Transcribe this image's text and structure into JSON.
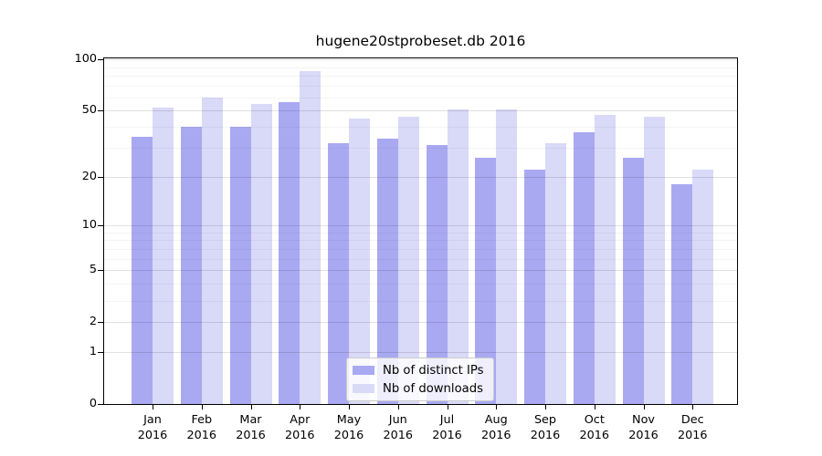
{
  "title": "hugene20stprobeset.db 2016",
  "chart_data": {
    "type": "bar",
    "title": "hugene20stprobeset.db 2016",
    "categories": [
      "Jan 2016",
      "Feb 2016",
      "Mar 2016",
      "Apr 2016",
      "May 2016",
      "Jun 2016",
      "Jul 2016",
      "Aug 2016",
      "Sep 2016",
      "Oct 2016",
      "Nov 2016",
      "Dec 2016"
    ],
    "series": [
      {
        "name": "Nb of distinct IPs",
        "color": "#a9a9f2",
        "values": [
          35,
          40,
          40,
          56,
          32,
          34,
          31,
          26,
          22,
          37,
          26,
          18
        ]
      },
      {
        "name": "Nb of downloads",
        "color": "#d9d9f8",
        "values": [
          52,
          60,
          55,
          85,
          45,
          46,
          51,
          51,
          32,
          47,
          46,
          22
        ]
      }
    ],
    "yscale": "log10(1+y)",
    "ylim": [
      0,
      100
    ],
    "ytick_labels": [
      "100",
      "50",
      "20",
      "10",
      "5",
      "2",
      "1",
      "0"
    ],
    "ytick_values": [
      100,
      50,
      20,
      10,
      5,
      2,
      1,
      0
    ],
    "major_gridlines": [
      1,
      2,
      5,
      10,
      20,
      50,
      100
    ],
    "minor_gridlines": [
      3,
      4,
      6,
      7,
      8,
      9,
      30,
      40,
      60,
      70,
      80,
      90
    ],
    "grid": true,
    "legend_position": "bottom-center"
  },
  "colors": {
    "axis": "#000000",
    "background": "#ffffff",
    "bar_distinct_ips": "#a9a9f2",
    "bar_downloads": "#d9d9f8"
  }
}
